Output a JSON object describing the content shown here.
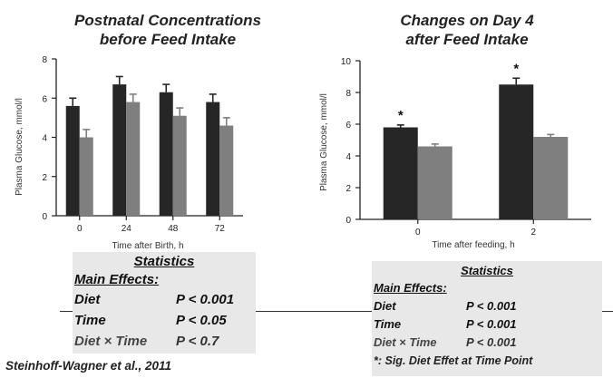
{
  "chart_data": [
    {
      "type": "bar",
      "title": "Postnatal Concentrations before Feed Intake",
      "title_lines": [
        "Postnatal Concentrations",
        "before Feed Intake"
      ],
      "xlabel": "Time after Birth, h",
      "ylabel": "Plasma Glucose, mmol/l",
      "categories": [
        "0",
        "24",
        "48",
        "72"
      ],
      "ylim": [
        0,
        8
      ],
      "yticks": [
        "0",
        "2",
        "4",
        "6",
        "8"
      ],
      "series": [
        {
          "values": [
            5.6,
            6.7,
            6.3,
            5.8
          ],
          "errors": [
            0.4,
            0.4,
            0.4,
            0.4
          ],
          "color": "#262626"
        },
        {
          "values": [
            4.0,
            5.8,
            5.1,
            4.6
          ],
          "errors": [
            0.4,
            0.4,
            0.4,
            0.4
          ],
          "color": "#7f7f7f"
        }
      ],
      "annotations": []
    },
    {
      "type": "bar",
      "title": "Changes on Day 4 after Feed Intake",
      "title_lines": [
        "Changes on Day 4",
        "after Feed Intake"
      ],
      "xlabel": "Time after feeding, h",
      "ylabel": "Plasma Glucose, mmol/l",
      "categories": [
        "0",
        "2"
      ],
      "ylim": [
        0,
        10
      ],
      "yticks": [
        "0",
        "2",
        "4",
        "6",
        "8",
        "10"
      ],
      "series": [
        {
          "values": [
            5.8,
            8.5
          ],
          "errors": [
            0.15,
            0.4
          ],
          "color": "#262626"
        },
        {
          "values": [
            4.6,
            5.2
          ],
          "errors": [
            0.15,
            0.15
          ],
          "color": "#7f7f7f"
        }
      ],
      "annotations": [
        "*",
        "*"
      ]
    }
  ],
  "stats_left": {
    "heading": "Statistics",
    "subheading": "Main Effects:",
    "rows": [
      {
        "label": "Diet",
        "value": "P < 0.001"
      },
      {
        "label": "Time",
        "value": "P < 0.05"
      },
      {
        "label": "Diet × Time",
        "value": "P < 0.7"
      }
    ]
  },
  "stats_right": {
    "heading": "Statistics",
    "subheading": "Main Effects:",
    "rows": [
      {
        "label": "Diet",
        "value": "P < 0.001"
      },
      {
        "label": "Time",
        "value": "P < 0.001"
      },
      {
        "label": "Diet × Time",
        "value": "P < 0.001"
      }
    ],
    "footnote": "*: Sig. Diet Effet at Time Point"
  },
  "citation": "Steinhoff-Wagner et al., 2011",
  "colors": {
    "dark_bar": "#262626",
    "light_bar": "#7f7f7f",
    "stat_box": "#e8e8e8"
  }
}
